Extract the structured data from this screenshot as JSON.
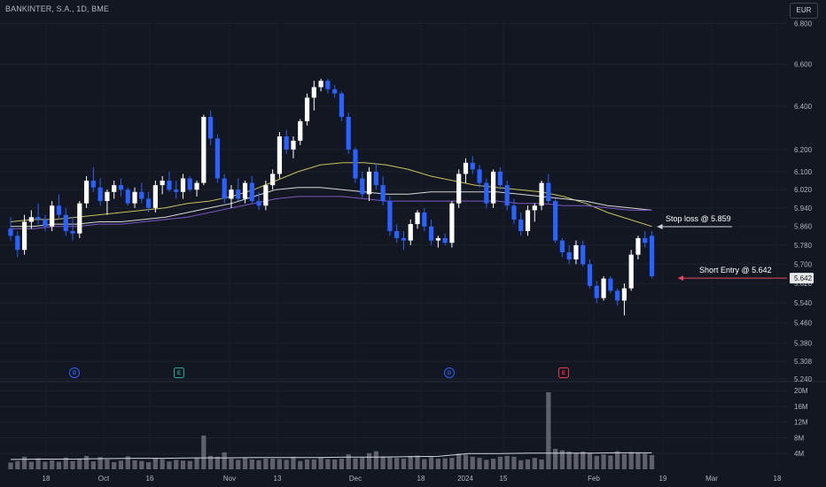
{
  "header": {
    "title": "BANKINTER, S.A., 1D, BME",
    "currency": "EUR"
  },
  "colors": {
    "background": "#131722",
    "grid": "#1e222d",
    "bull": "#ffffff",
    "bear": "#2962ff",
    "ma_fast": "#c9c15a",
    "ma_mid": "#d8d8d8",
    "ma_slow": "#7e57c2",
    "volume": "#787b86",
    "volume_ma": "#d1d4dc",
    "stop_arrow": "#d1d4dc",
    "entry_arrow": "#e84a5f",
    "dividend": "#2962ff",
    "earnings": "#26a69a",
    "earnings_negative": "#f23645"
  },
  "price_axis": {
    "scale": "log",
    "ticks": [
      "6.800",
      "6.600",
      "6.400",
      "6.200",
      "6.100",
      "6.020",
      "5.940",
      "5.860",
      "5.780",
      "5.700",
      "5.620",
      "5.540",
      "5.460",
      "5.380",
      "5.308",
      "5.240"
    ],
    "last_price_label": "5.642"
  },
  "volume_axis": {
    "ticks": [
      "20M",
      "16M",
      "12M",
      "8M",
      "4M"
    ]
  },
  "time_axis": {
    "labels": [
      "18",
      "Oct",
      "16",
      "Nov",
      "13",
      "Dec",
      "18",
      "2024",
      "15",
      "Feb",
      "19",
      "Mar",
      "18"
    ]
  },
  "annotations": {
    "stop_loss": "Stop loss @ 5.859",
    "short_entry": "Short Entry @ 5.642"
  },
  "events": [
    {
      "type": "dividend",
      "letter": "D"
    },
    {
      "type": "earnings",
      "letter": "E"
    },
    {
      "type": "dividend",
      "letter": "D"
    },
    {
      "type": "earnings_negative",
      "letter": "E"
    }
  ],
  "chart_data": {
    "type": "candlestick",
    "title": "BANKINTER, S.A., 1D, BME",
    "ylim": [
      5.24,
      6.82
    ],
    "ohlc": [
      [
        5.85,
        5.9,
        5.8,
        5.82
      ],
      [
        5.82,
        5.84,
        5.73,
        5.76
      ],
      [
        5.76,
        5.91,
        5.74,
        5.88
      ],
      [
        5.88,
        5.93,
        5.85,
        5.9
      ],
      [
        5.9,
        5.96,
        5.87,
        5.89
      ],
      [
        5.89,
        5.91,
        5.84,
        5.86
      ],
      [
        5.86,
        5.97,
        5.84,
        5.95
      ],
      [
        5.95,
        6.0,
        5.89,
        5.91
      ],
      [
        5.91,
        5.94,
        5.82,
        5.84
      ],
      [
        5.84,
        5.9,
        5.8,
        5.83
      ],
      [
        5.83,
        5.97,
        5.81,
        5.96
      ],
      [
        5.96,
        6.08,
        5.94,
        6.06
      ],
      [
        6.06,
        6.12,
        6.01,
        6.03
      ],
      [
        6.03,
        6.07,
        5.95,
        5.97
      ],
      [
        5.97,
        6.02,
        5.91,
        6.01
      ],
      [
        6.01,
        6.06,
        5.98,
        6.04
      ],
      [
        6.04,
        6.07,
        5.99,
        6.02
      ],
      [
        6.02,
        6.03,
        5.95,
        5.96
      ],
      [
        5.96,
        6.03,
        5.94,
        6.01
      ],
      [
        6.01,
        6.05,
        5.96,
        5.98
      ],
      [
        5.98,
        6.01,
        5.92,
        5.94
      ],
      [
        5.94,
        6.06,
        5.92,
        6.04
      ],
      [
        6.04,
        6.08,
        6.0,
        6.06
      ],
      [
        6.06,
        6.1,
        6.01,
        6.02
      ],
      [
        6.02,
        6.06,
        5.98,
        6.01
      ],
      [
        6.01,
        6.09,
        5.98,
        6.07
      ],
      [
        6.07,
        6.08,
        6.01,
        6.02
      ],
      [
        6.02,
        6.06,
        5.99,
        6.05
      ],
      [
        6.05,
        6.36,
        6.04,
        6.35
      ],
      [
        6.35,
        6.38,
        6.22,
        6.25
      ],
      [
        6.25,
        6.27,
        6.05,
        6.07
      ],
      [
        6.07,
        6.09,
        5.96,
        5.98
      ],
      [
        5.98,
        6.04,
        5.94,
        6.02
      ],
      [
        6.02,
        6.07,
        5.97,
        5.98
      ],
      [
        5.98,
        6.06,
        5.96,
        6.05
      ],
      [
        6.05,
        6.08,
        5.96,
        5.97
      ],
      [
        5.97,
        6.01,
        5.93,
        5.95
      ],
      [
        5.95,
        6.06,
        5.93,
        6.04
      ],
      [
        6.04,
        6.11,
        6.02,
        6.09
      ],
      [
        6.09,
        6.28,
        6.07,
        6.26
      ],
      [
        6.26,
        6.29,
        6.18,
        6.2
      ],
      [
        6.2,
        6.26,
        6.16,
        6.24
      ],
      [
        6.24,
        6.34,
        6.22,
        6.33
      ],
      [
        6.33,
        6.46,
        6.31,
        6.44
      ],
      [
        6.44,
        6.52,
        6.38,
        6.49
      ],
      [
        6.49,
        6.53,
        6.47,
        6.52
      ],
      [
        6.52,
        6.53,
        6.46,
        6.48
      ],
      [
        6.48,
        6.5,
        6.44,
        6.46
      ],
      [
        6.46,
        6.47,
        6.33,
        6.35
      ],
      [
        6.35,
        6.37,
        6.18,
        6.2
      ],
      [
        6.2,
        6.21,
        6.05,
        6.07
      ],
      [
        6.07,
        6.1,
        5.98,
        6.0
      ],
      [
        6.0,
        6.12,
        5.97,
        6.1
      ],
      [
        6.1,
        6.14,
        6.02,
        6.04
      ],
      [
        6.04,
        6.08,
        5.95,
        5.97
      ],
      [
        5.97,
        5.99,
        5.82,
        5.84
      ],
      [
        5.84,
        5.87,
        5.79,
        5.81
      ],
      [
        5.81,
        5.84,
        5.76,
        5.8
      ],
      [
        5.8,
        5.89,
        5.78,
        5.87
      ],
      [
        5.87,
        5.93,
        5.85,
        5.92
      ],
      [
        5.92,
        5.94,
        5.84,
        5.86
      ],
      [
        5.86,
        5.89,
        5.78,
        5.8
      ],
      [
        5.8,
        5.82,
        5.77,
        5.81
      ],
      [
        5.81,
        5.83,
        5.78,
        5.79
      ],
      [
        5.79,
        5.97,
        5.77,
        5.96
      ],
      [
        5.96,
        6.11,
        5.94,
        6.09
      ],
      [
        6.09,
        6.16,
        6.05,
        6.14
      ],
      [
        6.14,
        6.17,
        6.09,
        6.11
      ],
      [
        6.11,
        6.13,
        6.03,
        6.05
      ],
      [
        6.05,
        6.07,
        5.94,
        5.96
      ],
      [
        5.96,
        6.11,
        5.94,
        6.1
      ],
      [
        6.1,
        6.12,
        6.02,
        6.04
      ],
      [
        6.04,
        6.06,
        5.93,
        5.95
      ],
      [
        5.95,
        5.98,
        5.87,
        5.89
      ],
      [
        5.89,
        5.92,
        5.82,
        5.84
      ],
      [
        5.84,
        5.95,
        5.82,
        5.93
      ],
      [
        5.93,
        5.96,
        5.88,
        5.95
      ],
      [
        5.95,
        6.06,
        5.93,
        6.05
      ],
      [
        6.05,
        6.09,
        5.96,
        5.97
      ],
      [
        5.97,
        5.98,
        5.79,
        5.8
      ],
      [
        5.8,
        5.81,
        5.73,
        5.75
      ],
      [
        5.75,
        5.78,
        5.7,
        5.72
      ],
      [
        5.72,
        5.8,
        5.7,
        5.78
      ],
      [
        5.78,
        5.8,
        5.69,
        5.7
      ],
      [
        5.7,
        5.72,
        5.6,
        5.61
      ],
      [
        5.61,
        5.63,
        5.54,
        5.56
      ],
      [
        5.56,
        5.65,
        5.55,
        5.64
      ],
      [
        5.64,
        5.65,
        5.58,
        5.59
      ],
      [
        5.59,
        5.6,
        5.53,
        5.55
      ],
      [
        5.55,
        5.62,
        5.49,
        5.6
      ],
      [
        5.6,
        5.76,
        5.59,
        5.74
      ],
      [
        5.74,
        5.82,
        5.72,
        5.81
      ],
      [
        5.81,
        5.84,
        5.77,
        5.79
      ],
      [
        5.82,
        5.84,
        5.64,
        5.65
      ]
    ],
    "moving_averages": [
      {
        "color": "ma_fast",
        "values": [
          5.88,
          5.89,
          5.89,
          5.9,
          5.91,
          5.92,
          5.93,
          5.94,
          5.96,
          5.97,
          5.99,
          6.02,
          6.06,
          6.1,
          6.13,
          6.14,
          6.14,
          6.13,
          6.11,
          6.08,
          6.06,
          6.04,
          6.03,
          6.02,
          6.01,
          5.99,
          5.96,
          5.92,
          5.89,
          5.86
        ]
      },
      {
        "color": "ma_mid",
        "values": [
          5.86,
          5.86,
          5.87,
          5.87,
          5.88,
          5.88,
          5.89,
          5.9,
          5.92,
          5.94,
          5.96,
          5.99,
          6.02,
          6.03,
          6.03,
          6.02,
          6.01,
          6.0,
          6.0,
          6.01,
          6.01,
          6.01,
          6.01,
          6.0,
          5.99,
          5.98,
          5.97,
          5.95,
          5.94,
          5.93
        ]
      },
      {
        "color": "ma_slow",
        "values": [
          5.85,
          5.85,
          5.86,
          5.86,
          5.87,
          5.87,
          5.88,
          5.89,
          5.9,
          5.92,
          5.94,
          5.96,
          5.98,
          5.99,
          5.99,
          5.99,
          5.98,
          5.97,
          5.97,
          5.97,
          5.97,
          5.97,
          5.97,
          5.96,
          5.96,
          5.95,
          5.95,
          5.94,
          5.93,
          5.93
        ]
      }
    ],
    "volume_millions": [
      1.7,
      2.1,
      3.2,
      1.9,
      2.8,
      1.9,
      2.3,
      1.9,
      3.0,
      2.1,
      2.6,
      3.4,
      2.0,
      3.1,
      2.5,
      1.8,
      2.2,
      3.3,
      2.3,
      2.1,
      1.8,
      2.9,
      2.6,
      2.0,
      2.4,
      2.2,
      2.1,
      3.0,
      8.6,
      3.4,
      3.2,
      4.3,
      2.7,
      2.4,
      2.9,
      2.5,
      2.3,
      2.7,
      2.7,
      2.6,
      2.4,
      3.2,
      2.1,
      2.5,
      2.5,
      3.0,
      2.6,
      2.5,
      2.7,
      3.8,
      2.8,
      2.9,
      4.1,
      4.6,
      3.3,
      3.0,
      2.9,
      2.7,
      3.4,
      3.5,
      2.6,
      3.1,
      2.7,
      2.8,
      2.9,
      4.0,
      3.7,
      3.2,
      2.9,
      2.4,
      2.7,
      3.2,
      3.4,
      3.2,
      2.3,
      2.5,
      2.9,
      2.5,
      19.6,
      5.2,
      4.8,
      4.5,
      4.2,
      4.5,
      4.2,
      3.4,
      3.8,
      3.5,
      4.6,
      3.9,
      4.4,
      4.3,
      4.0,
      3.6
    ],
    "volume_ma_millions": [
      2.5,
      2.6,
      2.6,
      2.7,
      2.8,
      2.8,
      2.9,
      2.9,
      3.0,
      3.0,
      3.0,
      3.1,
      3.1,
      3.2,
      3.3,
      4.0,
      4.0,
      4.1,
      4.1,
      4.1,
      4.2,
      4.2
    ],
    "horizontal_levels": [
      {
        "label": "Stop loss @ 5.859",
        "price": 5.859
      },
      {
        "label": "Short Entry @ 5.642",
        "price": 5.642
      }
    ]
  }
}
